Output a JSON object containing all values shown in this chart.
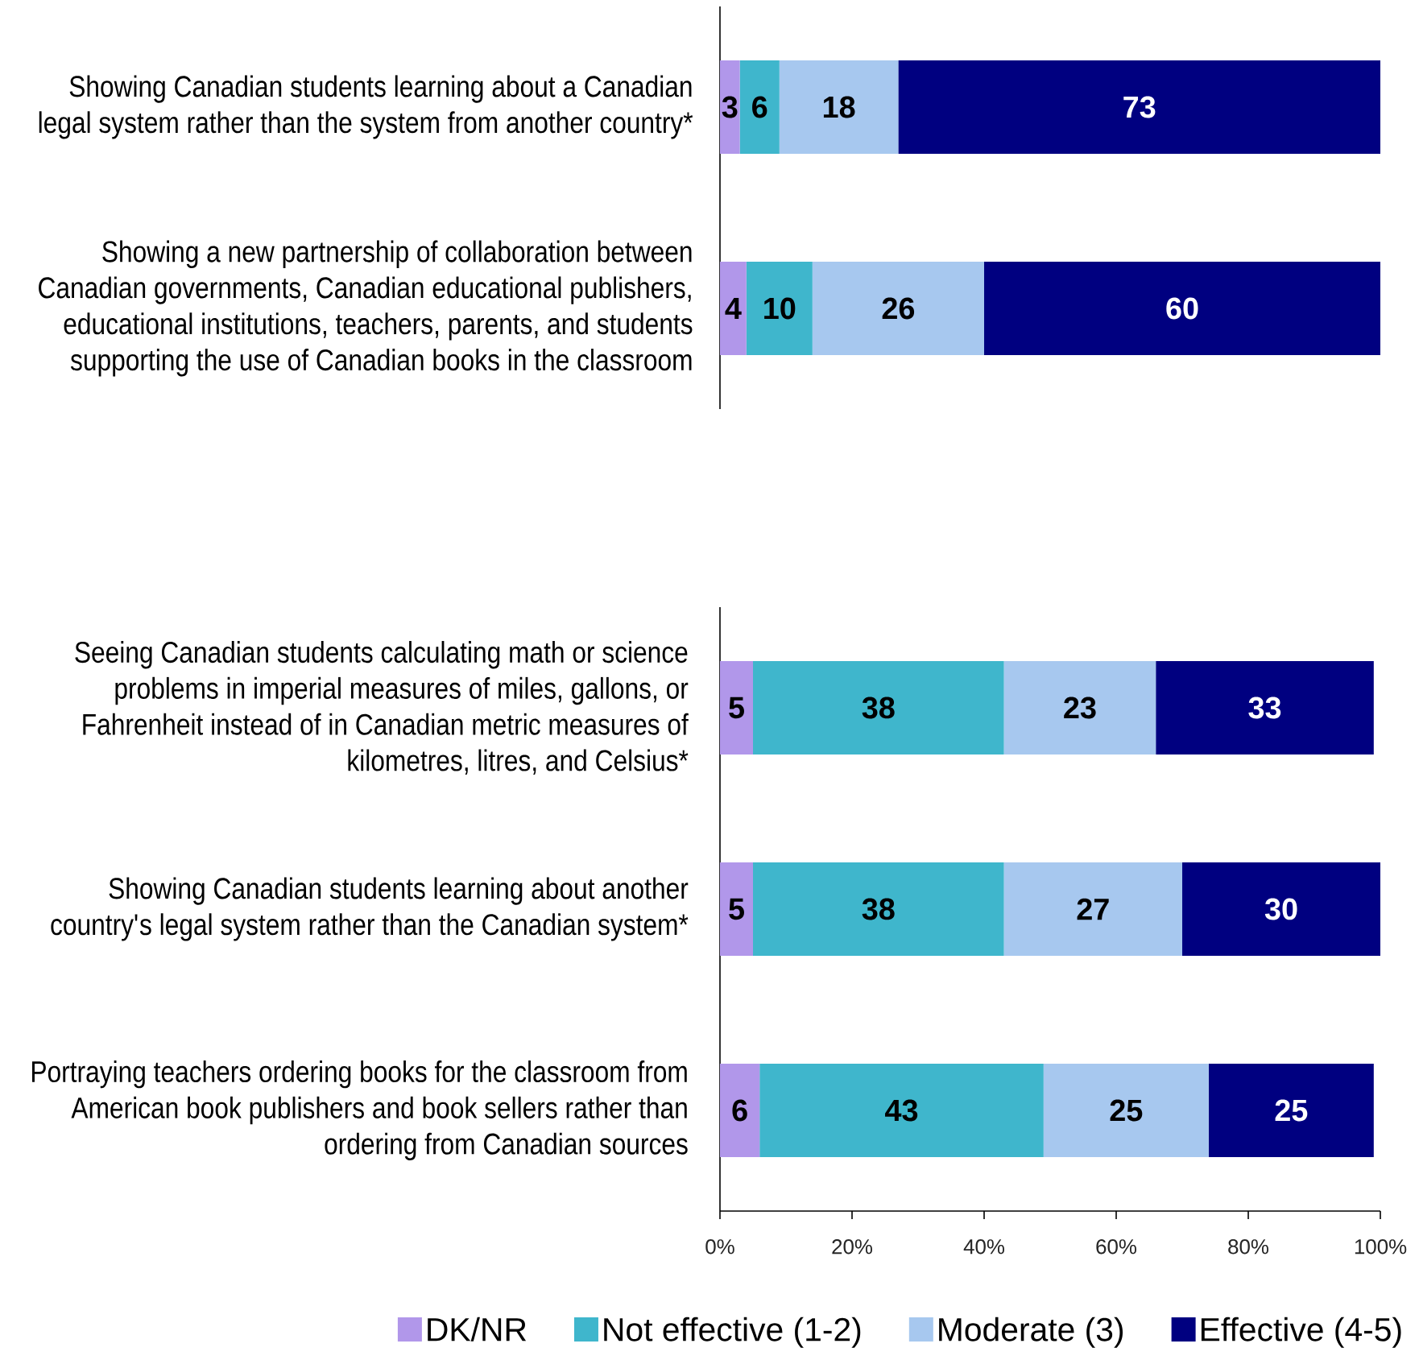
{
  "chart_data": [
    {
      "type": "bar",
      "orientation": "horizontal",
      "stacked": true,
      "categories": [
        "Showing Canadian students learning about a Canadian legal system rather than the system from another country*",
        "Showing a new partnership of collaboration between Canadian governments, Canadian educational publishers, educational institutions, teachers, parents, and students supporting the use of Canadian books in the classroom"
      ],
      "series": [
        {
          "color": "#b197ea",
          "values": [
            3,
            4
          ]
        },
        {
          "color": "#3fb6cc",
          "values": [
            6,
            10
          ]
        },
        {
          "color": "#a7c8ef",
          "values": [
            18,
            26
          ]
        },
        {
          "color": "#000080",
          "values": [
            73,
            60
          ]
        }
      ],
      "xlim": [
        0,
        100
      ],
      "tick_labels": "y",
      "data_labels": true
    },
    {
      "type": "bar",
      "orientation": "horizontal",
      "stacked": true,
      "categories": [
        "Seeing Canadian students calculating math or science problems in imperial measures of miles, gallons, or Fahrenheit instead of in Canadian metric measures of kilometres, litres, and Celsius*",
        "Showing Canadian students learning about another country's legal system rather than the Canadian system*",
        "Portraying teachers ordering books for the classroom from American book publishers and book sellers rather than ordering from Canadian sources"
      ],
      "series": [
        {
          "name": "DK/NR",
          "color": "#b197ea",
          "values": [
            5,
            5,
            6
          ]
        },
        {
          "name": "Not effective (1-2)",
          "color": "#3fb6cc",
          "values": [
            38,
            38,
            43
          ]
        },
        {
          "name": "Moderate (3)",
          "color": "#a7c8ef",
          "values": [
            23,
            27,
            25
          ]
        },
        {
          "name": "Effective (4-5)",
          "color": "#000080",
          "values": [
            33,
            30,
            25
          ]
        }
      ],
      "xlim": [
        0,
        100
      ],
      "xticks": [
        {
          "value": 0,
          "label": "0%"
        },
        {
          "value": 20,
          "label": "20%"
        },
        {
          "value": 40,
          "label": "40%"
        },
        {
          "value": 60,
          "label": "60%"
        },
        {
          "value": 80,
          "label": "80%"
        },
        {
          "value": 100,
          "label": "100%"
        }
      ],
      "legend": "bottom",
      "data_labels": true
    }
  ]
}
